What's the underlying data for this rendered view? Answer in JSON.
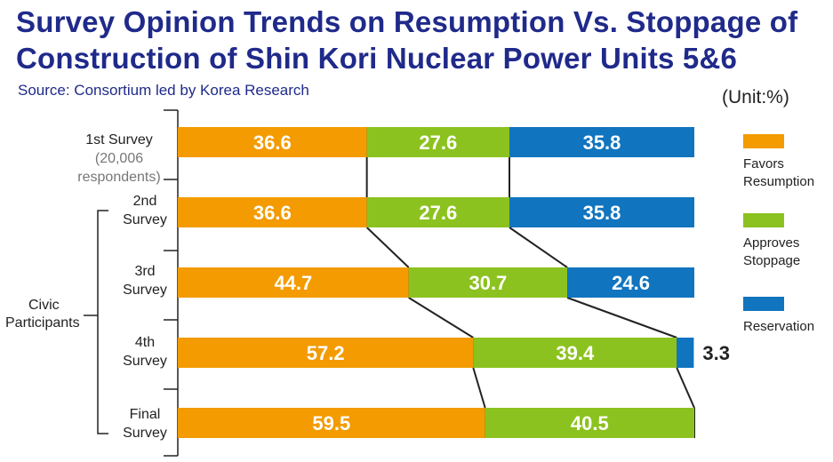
{
  "title_line1": "Survey Opinion Trends on Resumption Vs. Stoppage of",
  "title_line2": "Construction of Shin Kori Nuclear Power Units 5&6",
  "source": "Source: Consortium led by Korea Research",
  "unit": "(Unit:%)",
  "group_label_line1": "Civic",
  "group_label_line2": "Participants",
  "rows": [
    {
      "label_line1": "1st Survey",
      "label_line2": "(20,006",
      "label_line3": "respondents)"
    },
    {
      "label_line1": "2nd",
      "label_line2": "Survey"
    },
    {
      "label_line1": "3rd",
      "label_line2": "Survey"
    },
    {
      "label_line1": "4th",
      "label_line2": "Survey"
    },
    {
      "label_line1": "Final",
      "label_line2": "Survey"
    }
  ],
  "chart_data": {
    "type": "bar",
    "orientation": "horizontal",
    "stacked": true,
    "categories": [
      "1st Survey (20,006 respondents)",
      "2nd Survey",
      "3rd Survey",
      "4th Survey",
      "Final Survey"
    ],
    "series": [
      {
        "name": "Favors Resumption",
        "color": "#f39b00",
        "values": [
          36.6,
          36.6,
          44.7,
          57.2,
          59.5
        ]
      },
      {
        "name": "Approves Stoppage",
        "color": "#8cc21f",
        "values": [
          27.6,
          27.6,
          30.7,
          39.4,
          40.5
        ]
      },
      {
        "name": "Reservation",
        "color": "#1074bf",
        "values": [
          35.8,
          35.8,
          24.6,
          3.3,
          0
        ]
      }
    ],
    "xlim": [
      0,
      100
    ],
    "legend_placement": "right",
    "grid": false
  }
}
